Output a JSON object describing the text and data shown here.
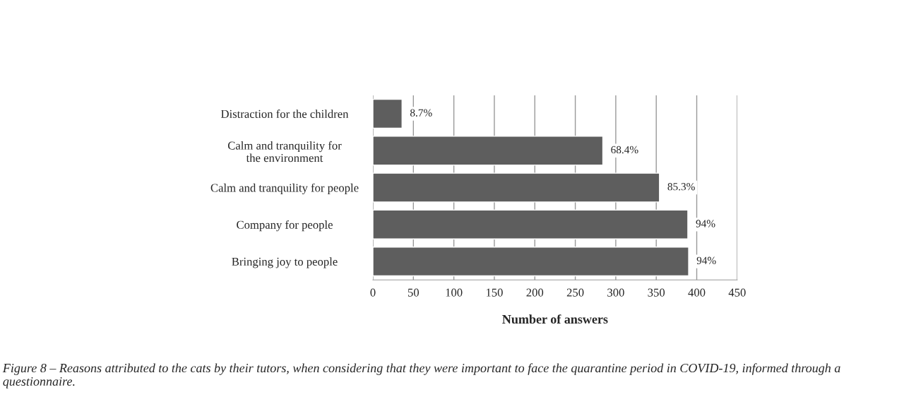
{
  "chart_data": {
    "type": "bar",
    "orientation": "horizontal",
    "xlabel": "Number of answers",
    "categories": [
      "Distraction for the children",
      "Calm and tranquility for the environment",
      "Calm and tranquility for people",
      "Company for people",
      "Bringing joy to people"
    ],
    "values": [
      36,
      284,
      354,
      389,
      390
    ],
    "color": "#5e5e5e",
    "xlim": [
      0,
      450
    ],
    "xticks": [
      0,
      50,
      100,
      150,
      200,
      250,
      300,
      350,
      400,
      450
    ],
    "grid": "x",
    "legend": false,
    "annotations": [
      {
        "text": "8.7%",
        "x": 36,
        "y": "Distraction for the children"
      },
      {
        "text": "68.4%",
        "x": 284,
        "y": "Calm and tranquility for the environment"
      },
      {
        "text": "85.3%",
        "x": 354,
        "y": "Calm and tranquility for people"
      },
      {
        "text": "94%",
        "x": 389,
        "y": "Company for people"
      },
      {
        "text": "94%",
        "x": 390,
        "y": "Bringing joy to people"
      },
      "Figure 8 – Reasons attributed to the cats by their tutors, when considering that they were important to face the quarantine period in COVID-19, informed through a questionnaire."
    ]
  }
}
